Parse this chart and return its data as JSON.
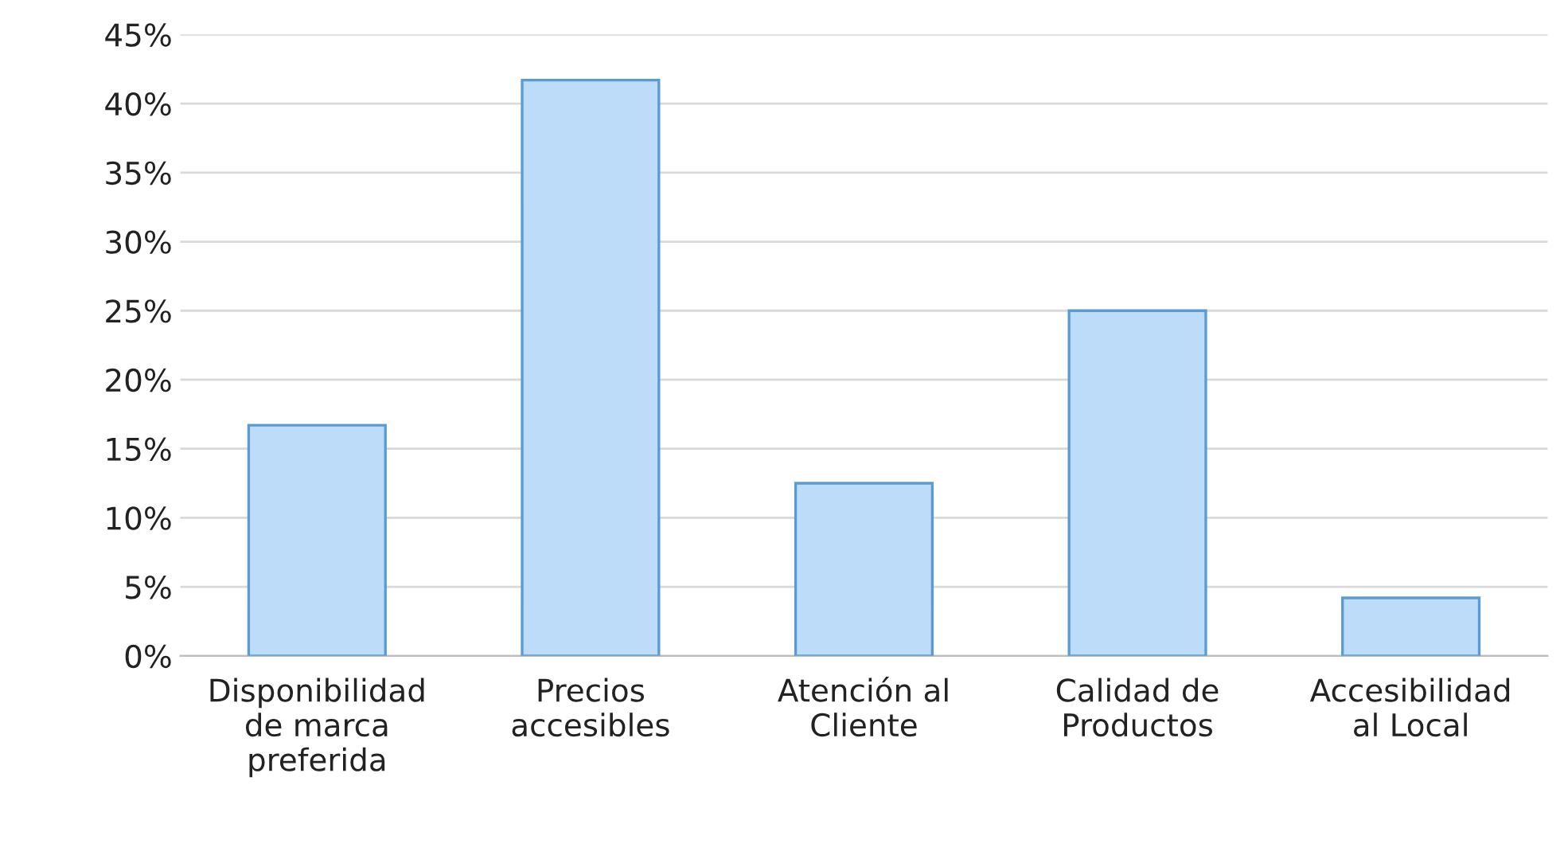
{
  "chart_data": {
    "type": "bar",
    "categories": [
      "Disponibilidad de marca preferida",
      "Precios accesibles",
      "Atención al Cliente",
      "Calidad de Productos",
      "Accesibilidad al Local"
    ],
    "values": [
      16.7,
      41.7,
      12.5,
      25,
      4.2
    ],
    "color": "#bddcfa",
    "ylim": [
      0,
      45
    ],
    "yticks": [
      {
        "value": 0,
        "label": "0%"
      },
      {
        "value": 5,
        "label": "5%"
      },
      {
        "value": 10,
        "label": "10%"
      },
      {
        "value": 15,
        "label": "15%"
      },
      {
        "value": 20,
        "label": "20%"
      },
      {
        "value": 25,
        "label": "25%"
      },
      {
        "value": 30,
        "label": "30%"
      },
      {
        "value": 35,
        "label": "35%"
      },
      {
        "value": 40,
        "label": "40%"
      },
      {
        "value": 45,
        "label": "45%"
      }
    ],
    "grid": "y"
  }
}
